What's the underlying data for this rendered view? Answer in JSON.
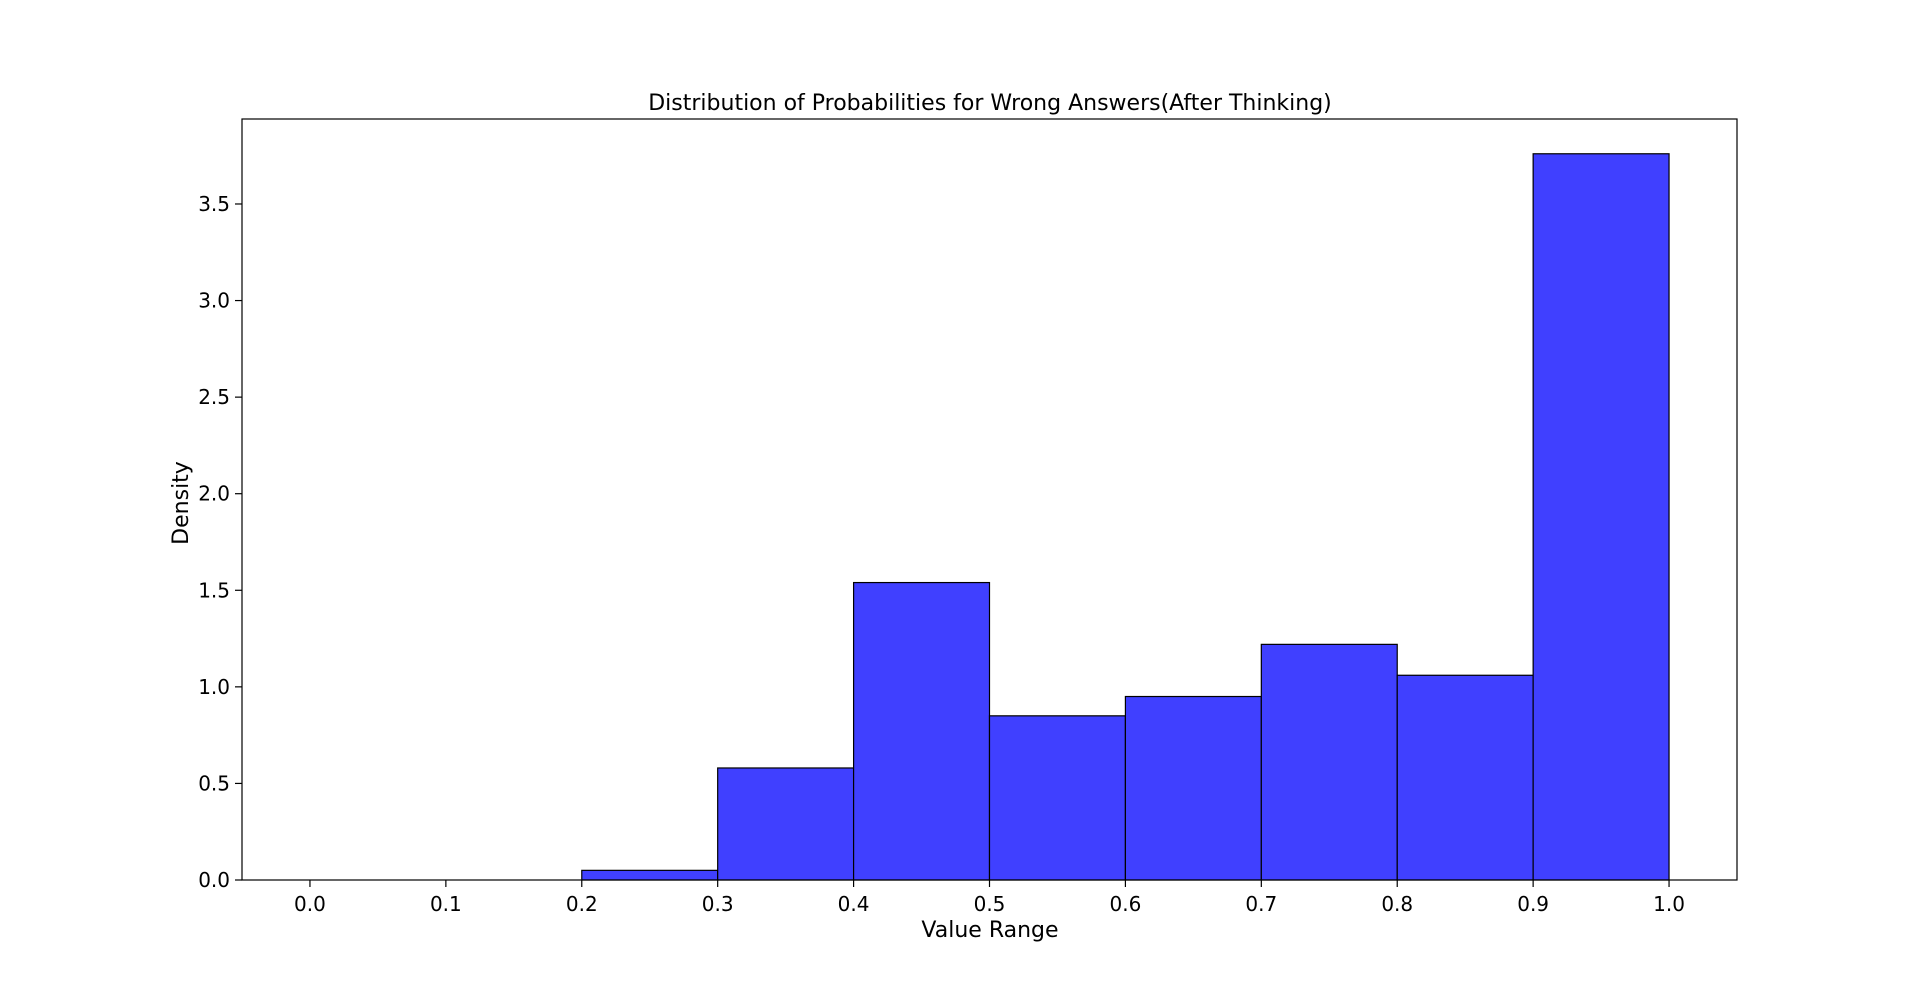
{
  "chart_data": {
    "type": "bar",
    "subtype": "histogram",
    "title": "Distribution of Probabilities for Wrong Answers(After Thinking)",
    "xlabel": "Value Range",
    "ylabel": "Density",
    "xlim": [
      -0.05,
      1.05
    ],
    "ylim": [
      0,
      3.94
    ],
    "xticks": [
      0.0,
      0.1,
      0.2,
      0.3,
      0.4,
      0.5,
      0.6,
      0.7,
      0.8,
      0.9,
      1.0
    ],
    "xtick_labels": [
      "0.0",
      "0.1",
      "0.2",
      "0.3",
      "0.4",
      "0.5",
      "0.6",
      "0.7",
      "0.8",
      "0.9",
      "1.0"
    ],
    "yticks": [
      0.0,
      0.5,
      1.0,
      1.5,
      2.0,
      2.5,
      3.0,
      3.5
    ],
    "ytick_labels": [
      "0.0",
      "0.5",
      "1.0",
      "1.5",
      "2.0",
      "2.5",
      "3.0",
      "3.5"
    ],
    "bin_edges": [
      0.0,
      0.1,
      0.2,
      0.3,
      0.4,
      0.5,
      0.6,
      0.7,
      0.8,
      0.9,
      1.0
    ],
    "values": [
      0.0,
      0.0,
      0.05,
      0.58,
      1.54,
      0.85,
      0.95,
      1.22,
      1.06,
      3.76
    ],
    "bar_color": "#4040ff",
    "edge_color": "#000000",
    "grid": false,
    "legend": null
  }
}
